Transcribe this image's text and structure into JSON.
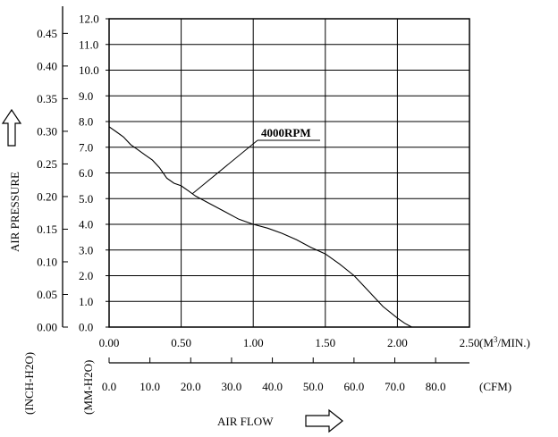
{
  "chart_data": {
    "type": "line",
    "series": [
      {
        "name": "4000RPM",
        "x": [
          0.0,
          0.05,
          0.1,
          0.15,
          0.2,
          0.25,
          0.3,
          0.35,
          0.4,
          0.45,
          0.5,
          0.55,
          0.6,
          0.7,
          0.8,
          0.9,
          1.0,
          1.1,
          1.2,
          1.3,
          1.4,
          1.5,
          1.6,
          1.7,
          1.8,
          1.9,
          2.0,
          2.05,
          2.1
        ],
        "y": [
          7.8,
          7.6,
          7.4,
          7.1,
          6.9,
          6.7,
          6.5,
          6.2,
          5.8,
          5.6,
          5.5,
          5.3,
          5.1,
          4.8,
          4.5,
          4.2,
          4.0,
          3.85,
          3.65,
          3.4,
          3.1,
          2.85,
          2.45,
          2.0,
          1.4,
          0.8,
          0.35,
          0.15,
          0.0
        ]
      }
    ],
    "x_primary": {
      "ticks": [
        "0.00",
        "0.50",
        "1.00",
        "1.50",
        "2.00",
        "2.50"
      ],
      "range": [
        0,
        2.5
      ],
      "unit_prefix": "(M",
      "unit_sup": "3",
      "unit_suffix": "/MIN.)"
    },
    "x_secondary": {
      "ticks": [
        "0.0",
        "10.0",
        "20.0",
        "30.0",
        "40.0",
        "50.0",
        "60.0",
        "70.0",
        "80.0"
      ],
      "range": [
        0,
        88.29
      ],
      "unit": "(CFM)"
    },
    "y_primary": {
      "ticks": [
        "0.0",
        "1.0",
        "2.0",
        "3.0",
        "4.0",
        "5.0",
        "6.0",
        "7.0",
        "8.0",
        "9.0",
        "10.0",
        "11.0",
        "12.0"
      ],
      "range": [
        0,
        12
      ],
      "unit": "(MM-H2O)"
    },
    "y_secondary": {
      "ticks": [
        "0.00",
        "0.05",
        "0.10",
        "0.15",
        "0.20",
        "0.25",
        "0.30",
        "0.35",
        "0.40",
        "0.45"
      ],
      "range": [
        0,
        0.4724
      ],
      "unit": "(INCH-H2O)"
    },
    "xlabel": "AIR FLOW",
    "ylabel": "AIR PRESSURE",
    "annotation": "4000RPM",
    "grid": true
  }
}
